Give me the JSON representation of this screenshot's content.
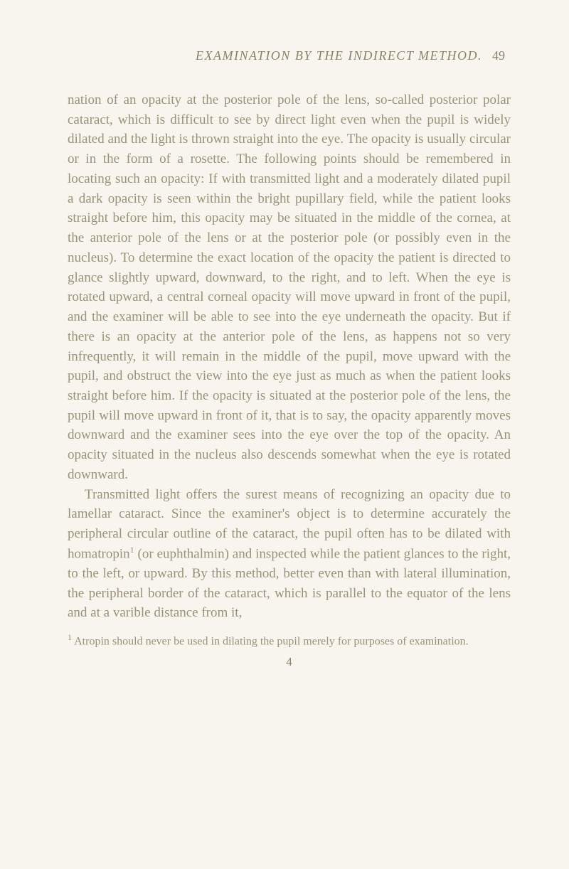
{
  "header": {
    "title": "EXAMINATION BY THE INDIRECT METHOD.",
    "page_number": "49"
  },
  "paragraphs": {
    "p1": "nation of an opacity at the posterior pole of the lens, so-called posterior polar cataract, which is difficult to see by direct light even when the pupil is widely dilated and the light is thrown straight into the eye. The opacity is usually circular or in the form of a rosette. The following points should be remembered in locating such an opacity: If with transmitted light and a moderately dilated pupil a dark opacity is seen within the bright pupillary field, while the patient looks straight before him, this opacity may be situated in the middle of the cornea, at the anterior pole of the lens or at the posterior pole (or possibly even in the nucleus). To determine the exact location of the opacity the patient is directed to glance slightly upward, downward, to the right, and to left. When the eye is rotated upward, a central corneal opacity will move upward in front of the pupil, and the examiner will be able to see into the eye underneath the opacity. But if there is an opacity at the anterior pole of the lens, as happens not so very infrequently, it will remain in the middle of the pupil, move upward with the pupil, and obstruct the view into the eye just as much as when the patient looks straight before him. If the opacity is situated at the posterior pole of the lens, the pupil will move upward in front of it, that is to say, the opacity apparently moves downward and the examiner sees into the eye over the top of the opacity. An opacity situated in the nucleus also descends somewhat when the eye is rotated downward.",
    "p2a": "Transmitted light offers the surest means of recognizing an opacity due to lamellar cataract. Since the examiner's object is to determine accurately the peripheral circular outline of the cataract, the pupil often has to be dilated with homatropin",
    "p2b": " (or euphthalmin) and inspected while the patient glances to the right, to the left, or upward. By this method, better even than with lateral illumination, the peripheral border of the cataract, which is parallel to the equator of the lens and at a varible distance from it,"
  },
  "footnote": {
    "marker": "1",
    "text": " Atropin should never be used in dilating the pupil merely for purposes of examination."
  },
  "bottom_number": "4"
}
